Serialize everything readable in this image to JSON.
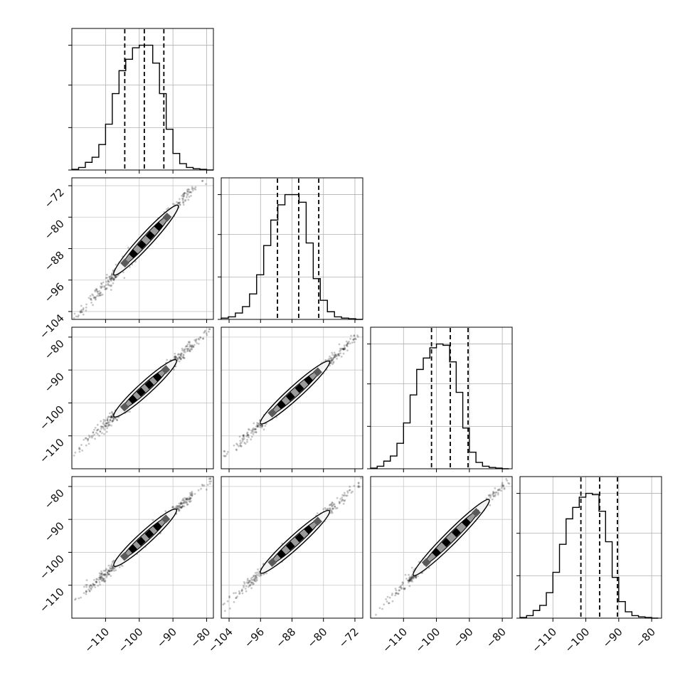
{
  "chart_data": {
    "type": "corner",
    "n_params": 4,
    "grid": true,
    "ranges": [
      [
        -120,
        -78
      ],
      [
        -106,
        -70
      ],
      [
        -120,
        -77
      ],
      [
        -120,
        -77
      ]
    ],
    "ticks": [
      {
        "values": [
          -110,
          -100,
          -90,
          -80
        ],
        "labels": [
          "−110",
          "−100",
          "−90",
          "−80"
        ]
      },
      {
        "values": [
          -104,
          -96,
          -88,
          -80,
          -72
        ],
        "labels": [
          "−104",
          "−96",
          "−88",
          "−80",
          "−72"
        ]
      },
      {
        "values": [
          -110,
          -100,
          -90,
          -80
        ],
        "labels": [
          "−110",
          "−100",
          "−90",
          "−80"
        ]
      },
      {
        "values": [
          -110,
          -100,
          -90,
          -80
        ],
        "labels": [
          "−110",
          "−100",
          "−90",
          "−80"
        ]
      }
    ],
    "histograms": [
      {
        "param": 0,
        "bin_edges": [
          -120,
          -118,
          -116,
          -114,
          -112,
          -110,
          -108,
          -106,
          -104,
          -102,
          -100,
          -98,
          -96,
          -94,
          -92,
          -90,
          -88,
          -86,
          -84,
          -82,
          -80,
          -78
        ],
        "counts": [
          0.005,
          0.02,
          0.06,
          0.1,
          0.2,
          0.36,
          0.6,
          0.78,
          0.87,
          0.96,
          0.98,
          0.98,
          0.84,
          0.6,
          0.32,
          0.13,
          0.05,
          0.02,
          0.01,
          0.005,
          0
        ],
        "quantiles": [
          -104.3,
          -98.5,
          -92.7
        ]
      },
      {
        "param": 1,
        "bin_edges": [
          -106,
          -104.2,
          -102.4,
          -100.6,
          -98.8,
          -97,
          -95.2,
          -93.4,
          -91.6,
          -89.8,
          -88,
          -86.2,
          -84.4,
          -82.6,
          -80.8,
          -79,
          -77.2,
          -75.4,
          -73.6,
          -71.8,
          -70
        ],
        "counts": [
          0.01,
          0.02,
          0.05,
          0.1,
          0.2,
          0.35,
          0.58,
          0.78,
          0.9,
          0.98,
          0.98,
          0.92,
          0.6,
          0.32,
          0.15,
          0.06,
          0.02,
          0.01,
          0.005,
          0
        ],
        "quantiles": [
          -91.7,
          -86.3,
          -81.2
        ]
      },
      {
        "param": 2,
        "bin_edges": [
          -120,
          -118,
          -116,
          -114,
          -112,
          -110,
          -108,
          -106,
          -104,
          -102,
          -100,
          -98,
          -96,
          -94,
          -92,
          -90,
          -88,
          -86,
          -84,
          -82,
          -80,
          -78
        ],
        "counts": [
          0.005,
          0.02,
          0.06,
          0.1,
          0.2,
          0.36,
          0.58,
          0.78,
          0.87,
          0.95,
          0.98,
          0.97,
          0.84,
          0.6,
          0.32,
          0.13,
          0.05,
          0.02,
          0.01,
          0.005,
          0
        ],
        "quantiles": [
          -101.5,
          -95.8,
          -90.4
        ]
      },
      {
        "param": 3,
        "bin_edges": [
          -120,
          -118,
          -116,
          -114,
          -112,
          -110,
          -108,
          -106,
          -104,
          -102,
          -100,
          -98,
          -96,
          -94,
          -92,
          -90,
          -88,
          -86,
          -84,
          -82,
          -80,
          -78
        ],
        "counts": [
          0.005,
          0.02,
          0.06,
          0.1,
          0.2,
          0.36,
          0.58,
          0.78,
          0.87,
          0.95,
          0.98,
          0.97,
          0.84,
          0.6,
          0.32,
          0.13,
          0.05,
          0.02,
          0.01,
          0.005,
          0
        ],
        "quantiles": [
          -101.5,
          -95.8,
          -90.4
        ]
      }
    ],
    "scatter_pairs": [
      {
        "x_param": 0,
        "y_param": 1,
        "center": [
          -98.5,
          -86.3
        ],
        "extent_x": [
          -119,
          -80
        ],
        "slope": 0.93,
        "contour_x": [
          -107.5,
          -88.5
        ]
      },
      {
        "x_param": 0,
        "y_param": 2,
        "center": [
          -98.5,
          -95.8
        ],
        "extent_x": [
          -118,
          -80
        ],
        "slope": 0.93,
        "contour_x": [
          -107.5,
          -89
        ]
      },
      {
        "x_param": 1,
        "y_param": 2,
        "center": [
          -86.3,
          -95.8
        ],
        "extent_x": [
          -104,
          -71
        ],
        "slope": 1.08,
        "contour_x": [
          -96,
          -78.5
        ]
      },
      {
        "x_param": 0,
        "y_param": 3,
        "center": [
          -98.5,
          -95.8
        ],
        "extent_x": [
          -118,
          -80
        ],
        "slope": 0.93,
        "contour_x": [
          -107.5,
          -89
        ]
      },
      {
        "x_param": 1,
        "y_param": 3,
        "center": [
          -86.3,
          -95.8
        ],
        "extent_x": [
          -104,
          -71
        ],
        "slope": 1.08,
        "contour_x": [
          -96,
          -78.5
        ]
      },
      {
        "x_param": 2,
        "y_param": 3,
        "center": [
          -95.8,
          -95.8
        ],
        "extent_x": [
          -116,
          -78
        ],
        "slope": 1.0,
        "contour_x": [
          -107,
          -84
        ]
      }
    ]
  }
}
